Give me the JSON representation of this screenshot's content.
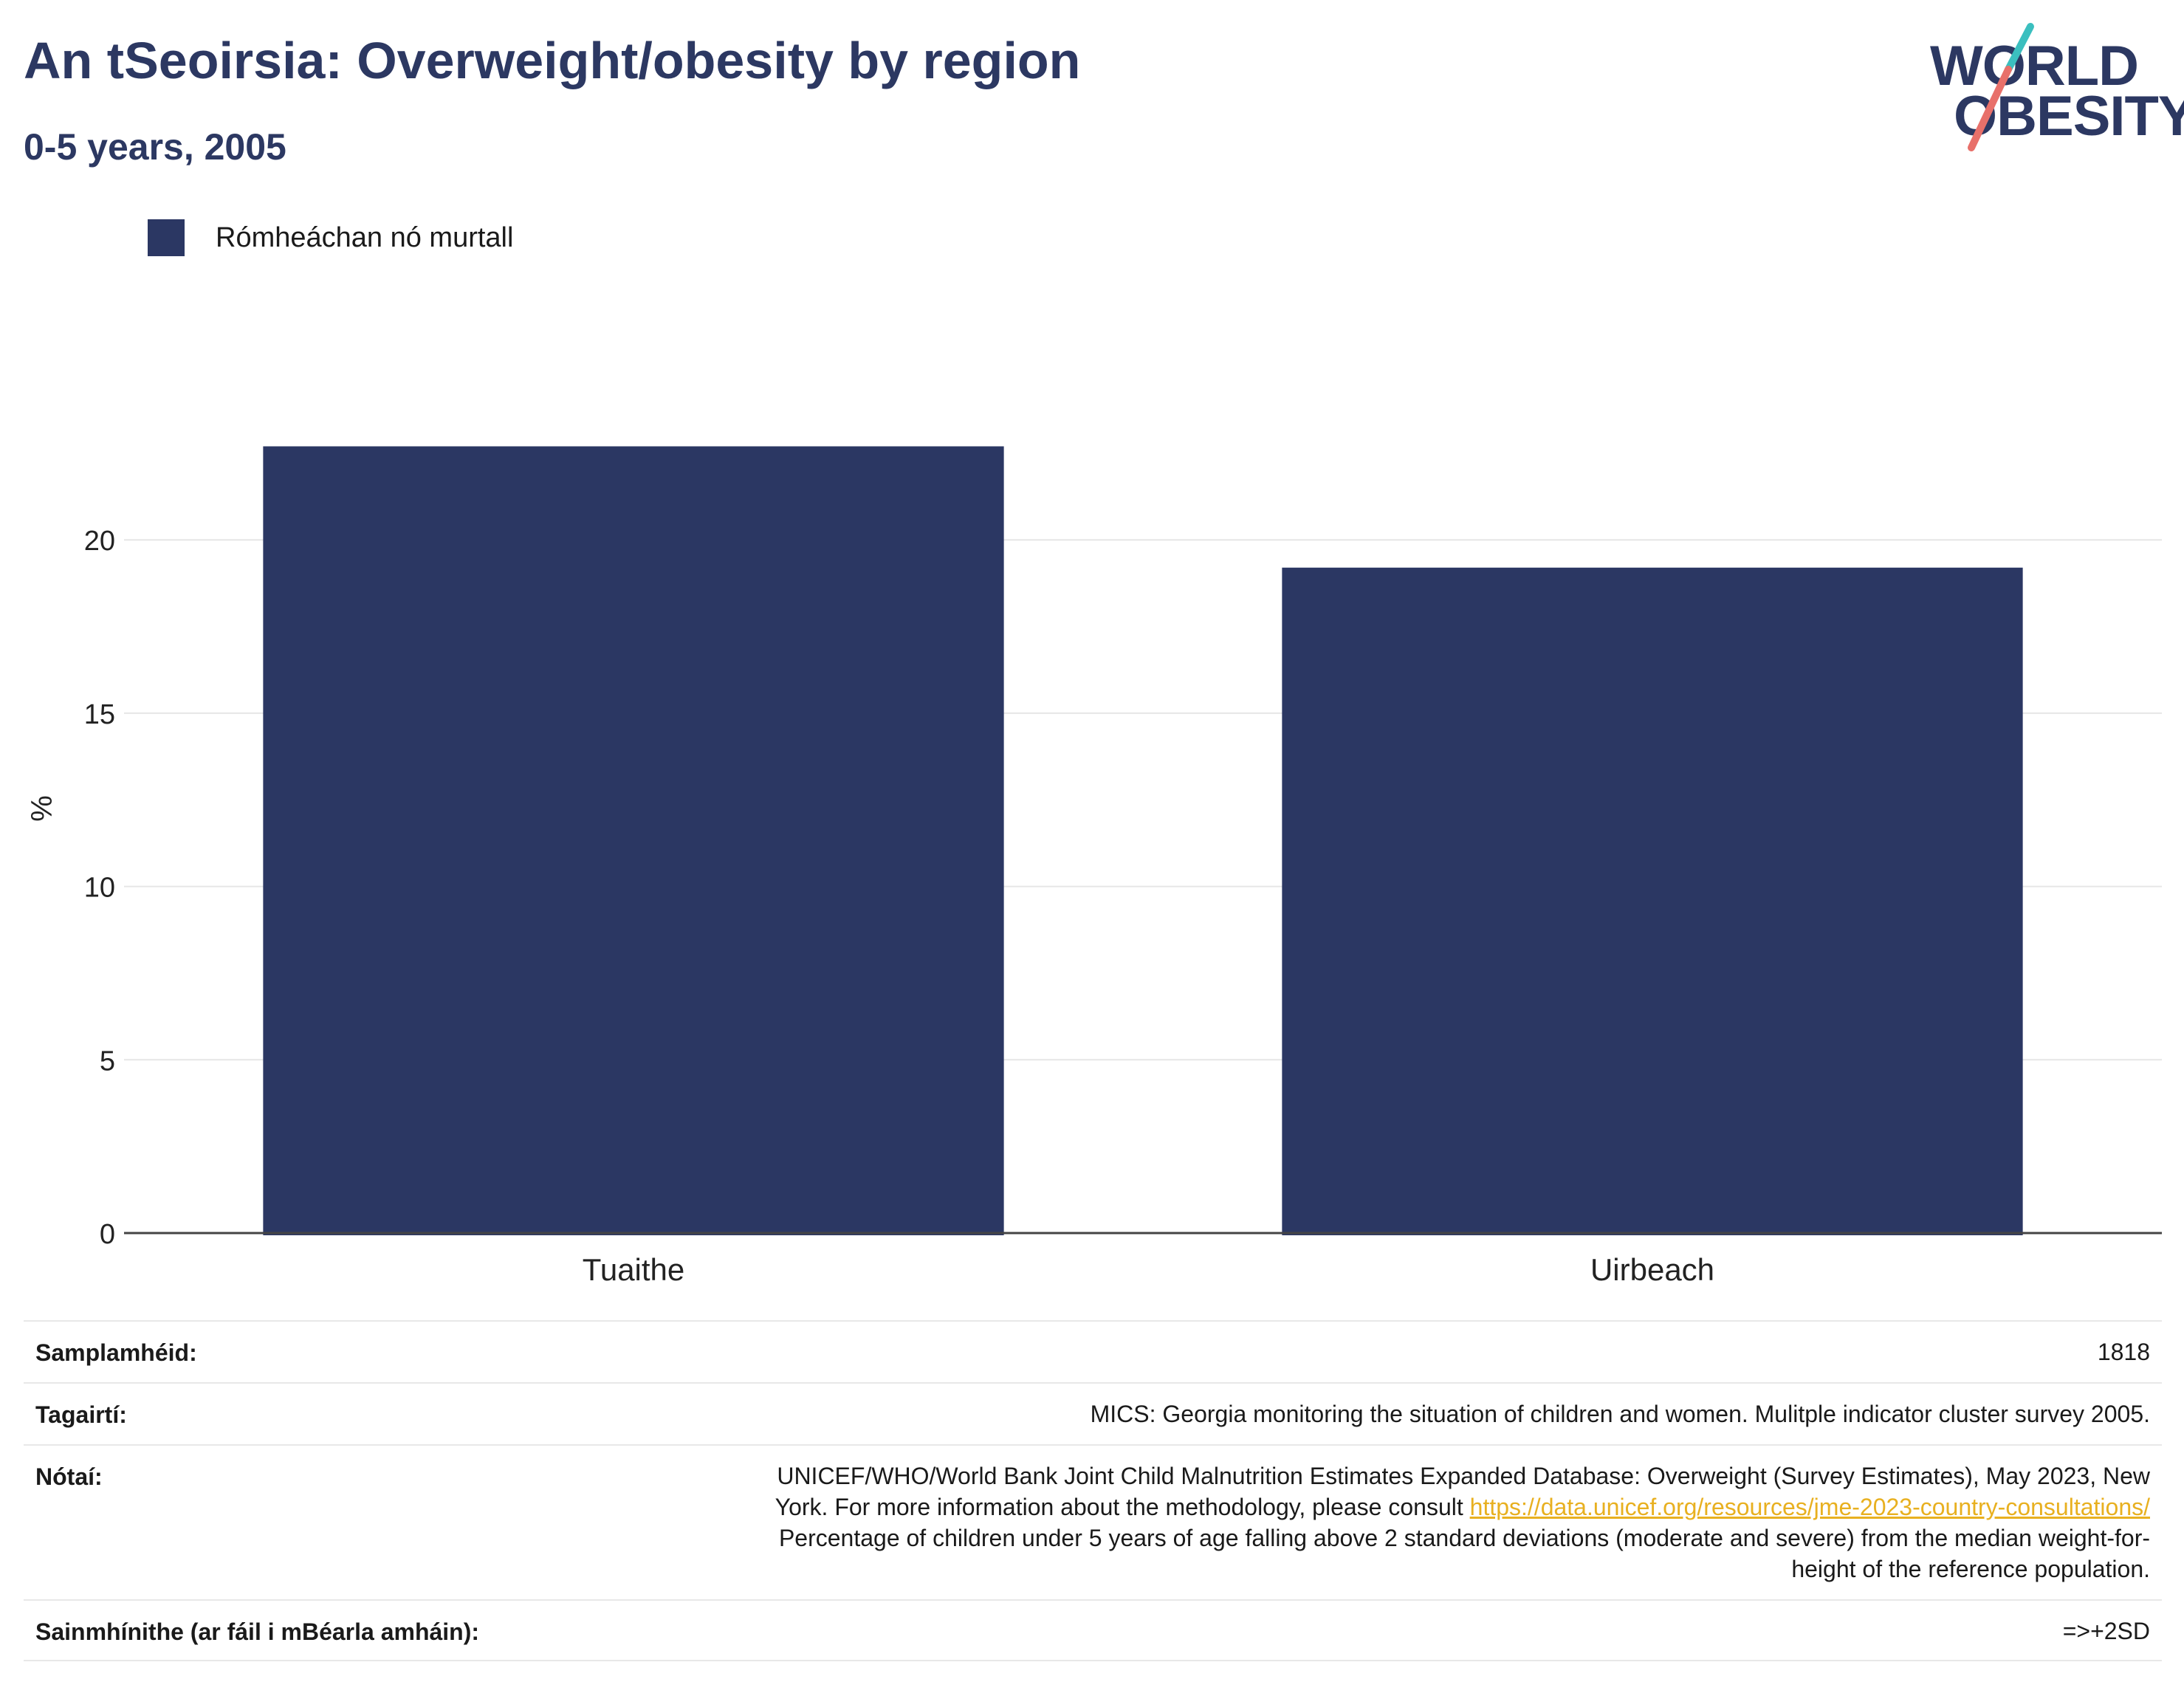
{
  "header": {
    "title": "An tSeoirsia: Overweight/obesity by region",
    "subtitle": "0-5 years, 2005"
  },
  "logo": {
    "line1": "WORLD",
    "line2": "OBESITY",
    "colors": {
      "text": "#2c3862",
      "slash_top": "#3bbfbf",
      "slash_bottom": "#e8706a"
    }
  },
  "legend": {
    "label": "Rómheáchan nó murtall",
    "color": "#2b3763"
  },
  "chart_data": {
    "type": "bar",
    "categories": [
      "Tuaithe",
      "Uirbeach"
    ],
    "series": [
      {
        "name": "Rómheáchan nó murtall",
        "values": [
          22.7,
          19.2
        ],
        "color": "#2b3763"
      }
    ],
    "title": "An tSeoirsia: Overweight/obesity by region",
    "subtitle": "0-5 years, 2005",
    "xlabel": "",
    "ylabel": "%",
    "ylim": [
      0,
      24.5
    ],
    "yticks": [
      0,
      5,
      10,
      15,
      20
    ],
    "grid": true,
    "legend_position": "top-left"
  },
  "info": {
    "sample_size": {
      "label": "Samplamhéid:",
      "value": "1818"
    },
    "references": {
      "label": "Tagairtí:",
      "value": "MICS: Georgia monitoring the situation of children and women. Mulitple indicator cluster survey 2005."
    },
    "notes": {
      "label": "Nótaí:",
      "line1": "UNICEF/WHO/World Bank Joint Child Malnutrition Estimates Expanded Database: Overweight (Survey Estimates), May 2023, New",
      "line2_prefix": "York. For more information about the methodology, please consult ",
      "link": "https://data.unicef.org/resources/jme-2023-country-consultations/",
      "line3": "Percentage of children under 5 years of age falling above 2 standard deviations (moderate and severe) from the median weight-for-",
      "line4": "height of the reference population."
    },
    "definitions": {
      "label": "Sainmhínithe (ar fáil i mBéarla amháin):",
      "value": "=>+2SD"
    }
  }
}
